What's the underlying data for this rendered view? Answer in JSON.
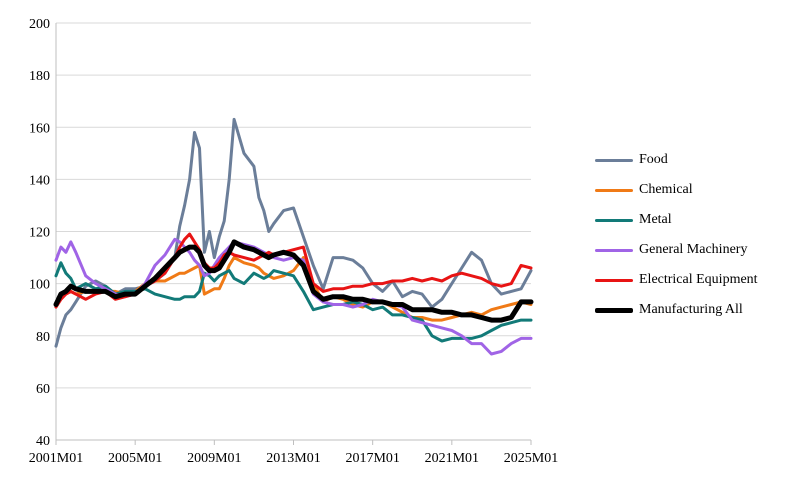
{
  "chart_data": {
    "type": "line",
    "title": "",
    "xlabel": "",
    "ylabel": "",
    "ylim": [
      40,
      200
    ],
    "yticks": [
      40,
      60,
      80,
      100,
      120,
      140,
      160,
      180,
      200
    ],
    "xlim": [
      2001.0,
      2025.0
    ],
    "xticks": [
      {
        "value": 2001,
        "label": "2001M01"
      },
      {
        "value": 2005,
        "label": "2005M01"
      },
      {
        "value": 2009,
        "label": "2009M01"
      },
      {
        "value": 2013,
        "label": "2013M01"
      },
      {
        "value": 2017,
        "label": "2017M01"
      },
      {
        "value": 2021,
        "label": "2021M01"
      },
      {
        "value": 2025,
        "label": "2025M01"
      }
    ],
    "grid": "horizontal",
    "legend_position": "right",
    "x": [
      2001.0,
      2001.25,
      2001.5,
      2001.75,
      2002.0,
      2002.5,
      2003.0,
      2003.5,
      2004.0,
      2004.5,
      2005.0,
      2005.5,
      2006.0,
      2006.5,
      2007.0,
      2007.25,
      2007.5,
      2007.75,
      2008.0,
      2008.25,
      2008.5,
      2008.75,
      2009.0,
      2009.25,
      2009.5,
      2009.75,
      2010.0,
      2010.5,
      2011.0,
      2011.25,
      2011.5,
      2011.75,
      2012.0,
      2012.5,
      2013.0,
      2013.5,
      2014.0,
      2014.5,
      2015.0,
      2015.5,
      2016.0,
      2016.5,
      2017.0,
      2017.5,
      2018.0,
      2018.5,
      2019.0,
      2019.5,
      2020.0,
      2020.5,
      2021.0,
      2021.5,
      2022.0,
      2022.5,
      2023.0,
      2023.5,
      2024.0,
      2024.5,
      2025.0
    ],
    "series": [
      {
        "name": "Food",
        "color": "#6b7e99",
        "width": 3,
        "values": [
          76,
          83,
          88,
          90,
          93,
          99,
          101,
          99,
          96,
          98,
          98,
          99,
          101,
          104,
          110,
          122,
          130,
          140,
          158,
          152,
          112,
          120,
          110,
          118,
          124,
          140,
          163,
          150,
          145,
          133,
          128,
          120,
          123,
          128,
          129,
          118,
          107,
          98,
          110,
          110,
          109,
          106,
          100,
          97,
          101,
          95,
          97,
          96,
          91,
          94,
          100,
          106,
          112,
          109,
          100,
          96,
          97,
          98,
          105
        ]
      },
      {
        "name": "Chemical",
        "color": "#f07a16",
        "width": 3,
        "values": [
          92,
          95,
          96,
          97,
          96,
          97,
          97,
          97,
          97,
          96,
          97,
          100,
          101,
          101,
          103,
          104,
          104,
          105,
          106,
          107,
          96,
          97,
          98,
          98,
          102,
          107,
          110,
          108,
          107,
          106,
          104,
          103,
          102,
          103,
          105,
          110,
          100,
          93,
          95,
          94,
          92,
          91,
          93,
          93,
          91,
          89,
          87,
          87,
          86,
          86,
          87,
          88,
          89,
          88,
          90,
          91,
          92,
          93,
          92
        ]
      },
      {
        "name": "Metal",
        "color": "#127a78",
        "width": 3,
        "values": [
          103,
          108,
          104,
          102,
          98,
          100,
          98,
          99,
          96,
          97,
          97,
          98,
          96,
          95,
          94,
          94,
          95,
          95,
          95,
          97,
          104,
          103,
          101,
          103,
          104,
          105,
          102,
          100,
          104,
          103,
          102,
          103,
          105,
          104,
          103,
          97,
          90,
          91,
          92,
          92,
          93,
          92,
          90,
          91,
          88,
          88,
          87,
          86,
          80,
          78,
          79,
          79,
          79,
          80,
          82,
          84,
          85,
          86,
          86
        ]
      },
      {
        "name": "General Machinery",
        "color": "#a064e6",
        "width": 3,
        "values": [
          109,
          114,
          112,
          116,
          112,
          103,
          100,
          98,
          96,
          95,
          96,
          100,
          107,
          111,
          117,
          116,
          114,
          112,
          109,
          107,
          103,
          104,
          107,
          110,
          112,
          114,
          116,
          115,
          114,
          113,
          112,
          111,
          110,
          109,
          110,
          109,
          96,
          93,
          92,
          92,
          91,
          92,
          94,
          93,
          92,
          91,
          86,
          85,
          84,
          83,
          82,
          80,
          77,
          77,
          73,
          74,
          77,
          79,
          79
        ]
      },
      {
        "name": "Electrical Equipment",
        "color": "#e81414",
        "width": 3,
        "values": [
          91,
          94,
          96,
          97,
          96,
          94,
          96,
          97,
          94,
          95,
          96,
          99,
          101,
          104,
          110,
          114,
          117,
          119,
          116,
          113,
          108,
          106,
          106,
          108,
          111,
          112,
          111,
          110,
          109,
          110,
          111,
          112,
          111,
          112,
          113,
          114,
          100,
          97,
          98,
          98,
          99,
          99,
          100,
          100,
          101,
          101,
          102,
          101,
          102,
          101,
          103,
          104,
          103,
          102,
          100,
          99,
          100,
          107,
          106
        ]
      },
      {
        "name": "Manufacturing All",
        "color": "#000000",
        "width": 5,
        "values": [
          92,
          96,
          97,
          99,
          98,
          97,
          97,
          97,
          95,
          96,
          96,
          99,
          102,
          106,
          110,
          112,
          113,
          114,
          114,
          112,
          107,
          105,
          105,
          106,
          109,
          112,
          116,
          114,
          113,
          112,
          111,
          110,
          111,
          112,
          111,
          107,
          97,
          94,
          95,
          95,
          94,
          94,
          93,
          93,
          92,
          92,
          90,
          90,
          90,
          89,
          89,
          88,
          88,
          87,
          86,
          86,
          87,
          93,
          93
        ]
      }
    ]
  }
}
